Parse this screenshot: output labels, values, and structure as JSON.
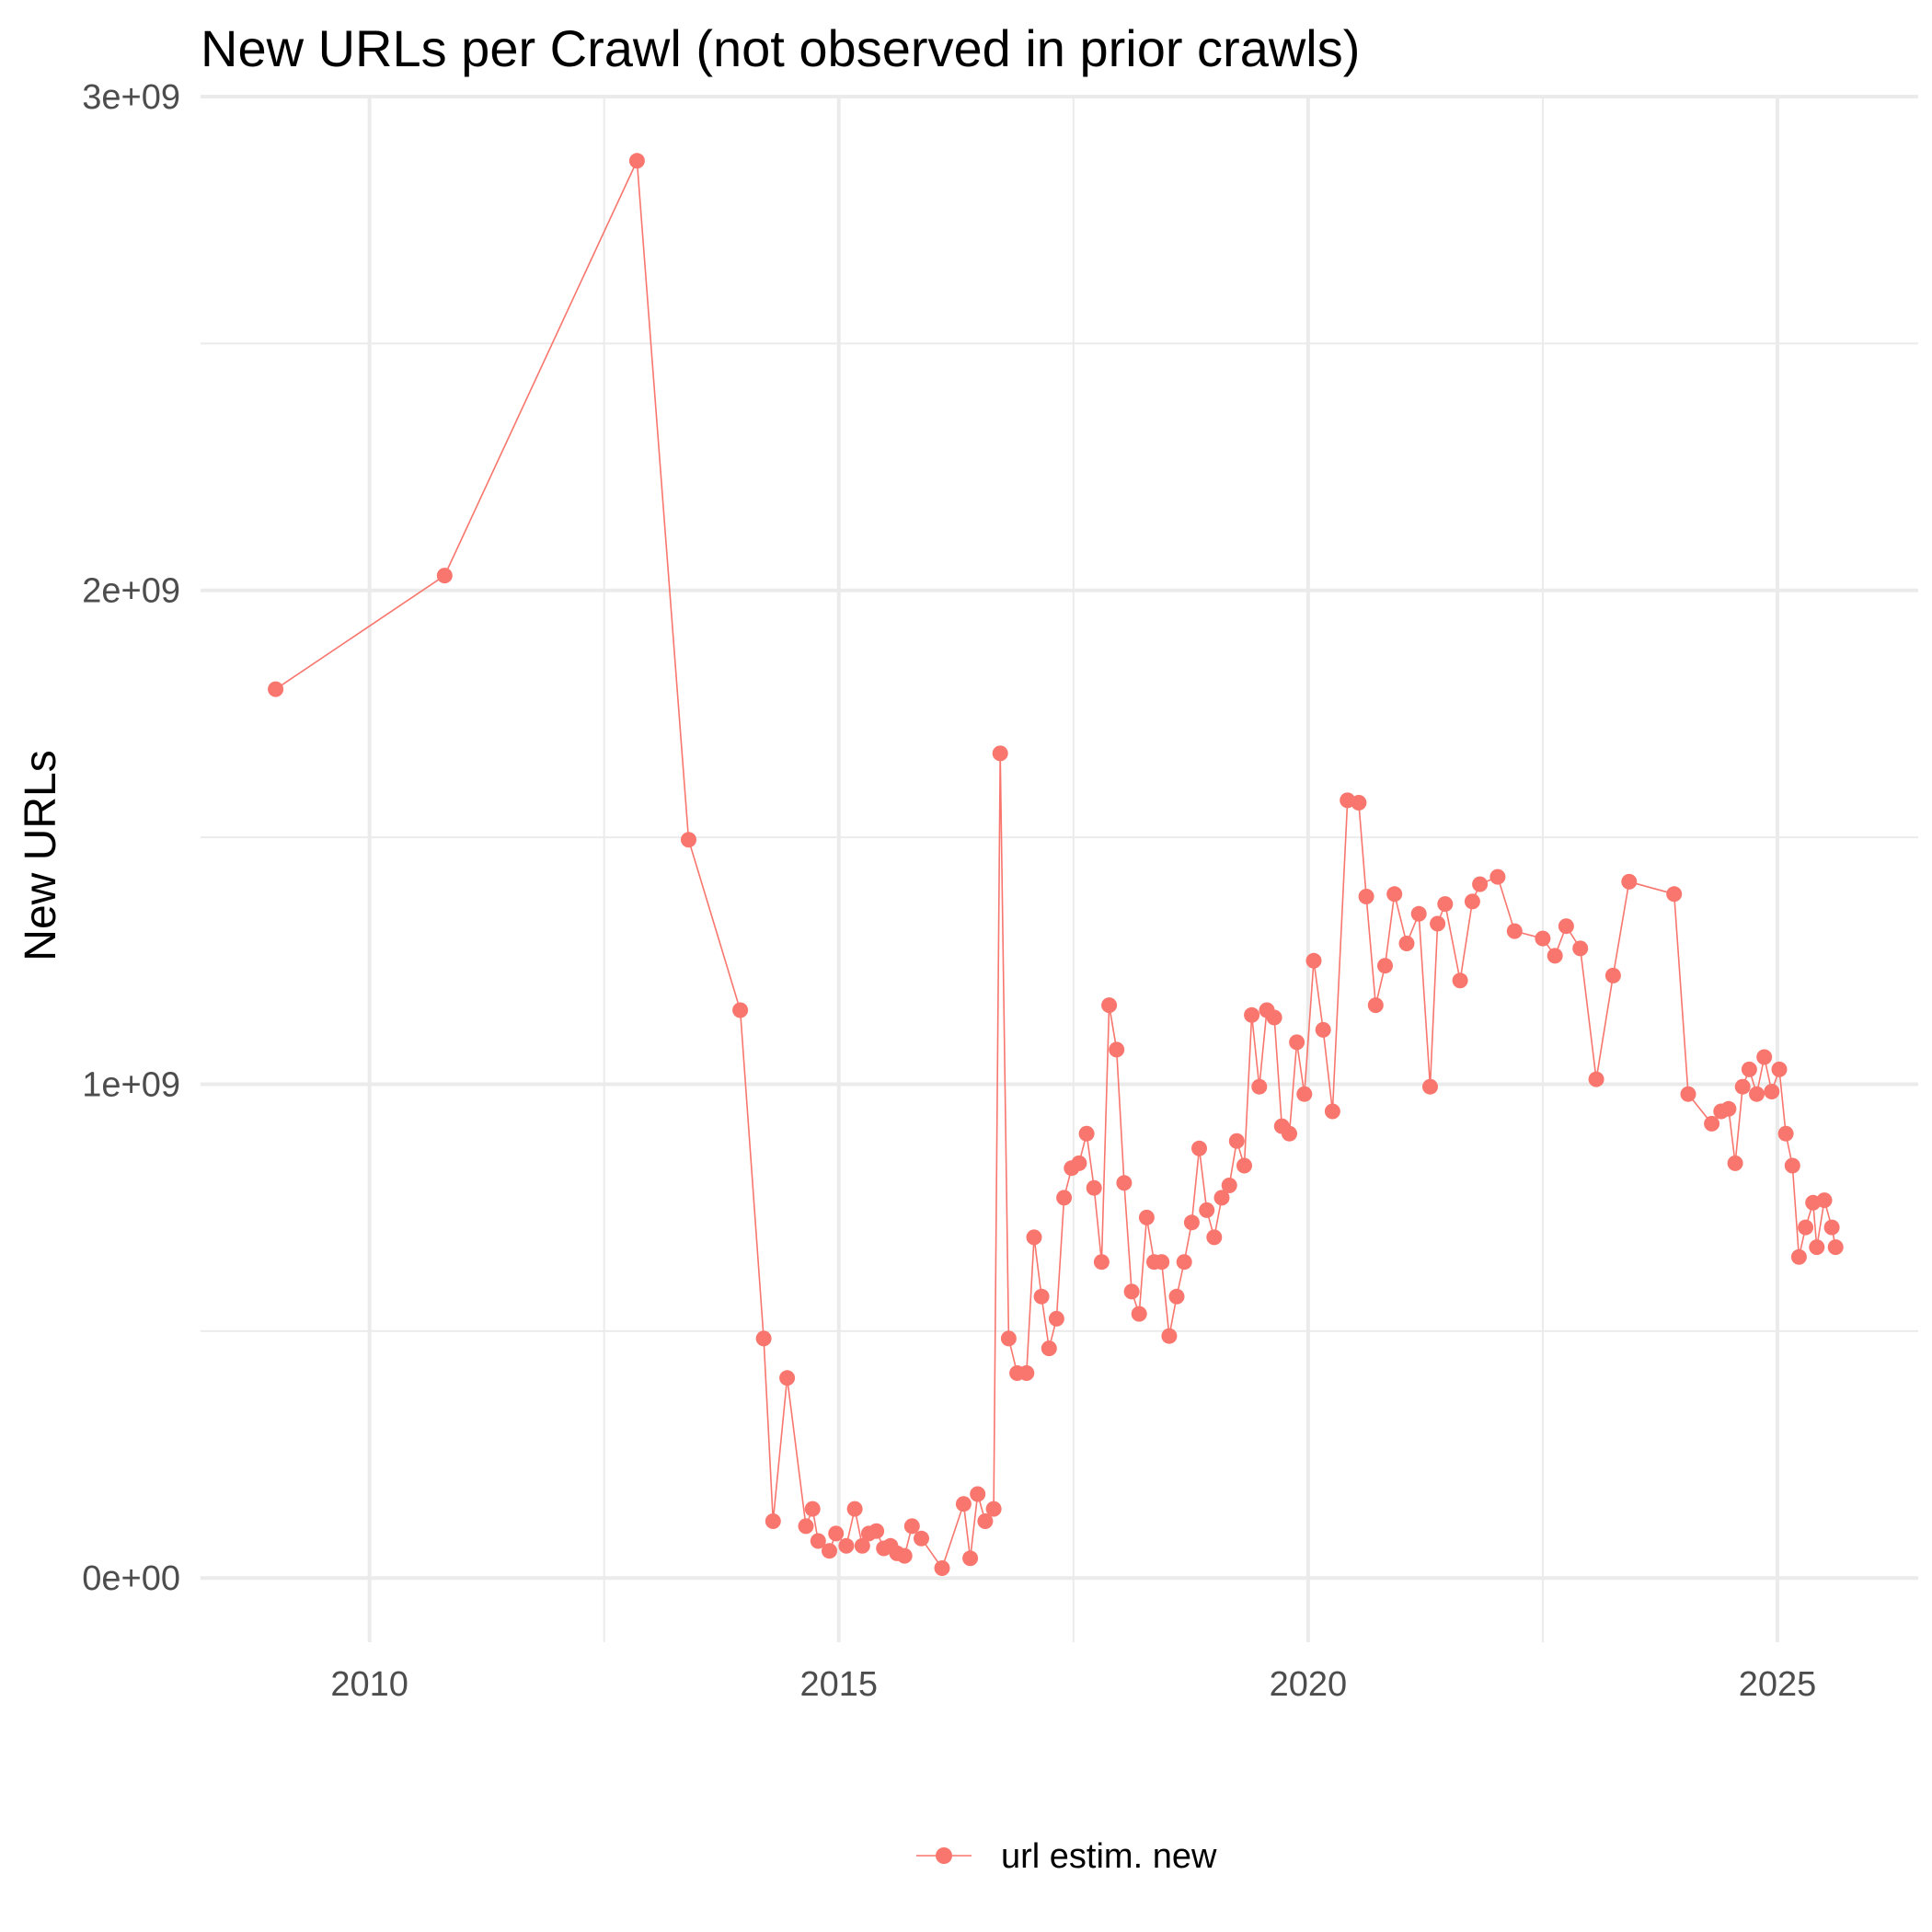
{
  "chart_data": {
    "type": "line",
    "title": "New URLs per Crawl (not observed in prior crawls)",
    "xlabel": "",
    "ylabel": "New URLs",
    "xlim": [
      2008.2,
      2026.5
    ],
    "ylim": [
      -130000000,
      3000000000
    ],
    "x_ticks": [
      2010,
      2015,
      2020,
      2025
    ],
    "x_tick_labels": [
      "2010",
      "2015",
      "2020",
      "2025"
    ],
    "y_ticks": [
      0,
      1000000000,
      2000000000,
      3000000000
    ],
    "y_tick_labels": [
      "0e+00",
      "1e+09",
      "2e+09",
      "3e+09"
    ],
    "grid": true,
    "legend_position": "bottom",
    "series": [
      {
        "name": "url estim. new",
        "color": "#f8766d",
        "x": [
          2009.0,
          2010.8,
          2012.85,
          2013.4,
          2013.95,
          2014.2,
          2014.3,
          2014.45,
          2014.65,
          2014.72,
          2014.78,
          2014.9,
          2014.97,
          2015.08,
          2015.17,
          2015.25,
          2015.32,
          2015.4,
          2015.48,
          2015.55,
          2015.62,
          2015.7,
          2015.78,
          2015.88,
          2016.1,
          2016.33,
          2016.4,
          2016.48,
          2016.56,
          2016.65,
          2016.72,
          2016.81,
          2016.9,
          2017.0,
          2017.08,
          2017.16,
          2017.24,
          2017.32,
          2017.4,
          2017.48,
          2017.56,
          2017.64,
          2017.72,
          2017.8,
          2017.88,
          2017.96,
          2018.04,
          2018.12,
          2018.2,
          2018.28,
          2018.36,
          2018.44,
          2018.52,
          2018.6,
          2018.68,
          2018.76,
          2018.84,
          2018.92,
          2019.0,
          2019.08,
          2019.16,
          2019.24,
          2019.32,
          2019.4,
          2019.48,
          2019.56,
          2019.64,
          2019.72,
          2019.8,
          2019.88,
          2019.96,
          2020.06,
          2020.16,
          2020.26,
          2020.42,
          2020.54,
          2020.62,
          2020.72,
          2020.82,
          2020.92,
          2021.05,
          2021.18,
          2021.3,
          2021.38,
          2021.46,
          2021.62,
          2021.75,
          2021.83,
          2022.02,
          2022.2,
          2022.5,
          2022.63,
          2022.75,
          2022.9,
          2023.07,
          2023.25,
          2023.42,
          2023.9,
          2024.05,
          2024.3,
          2024.4,
          2024.48,
          2024.55,
          2024.63,
          2024.7,
          2024.78,
          2024.86,
          2024.94,
          2025.02,
          2025.09,
          2025.16,
          2025.23,
          2025.3,
          2025.38,
          2025.42,
          2025.5,
          2025.58,
          2025.62
        ],
        "y": [
          1800000000,
          2030000000,
          2870000000,
          1495000000,
          1150000000,
          485000000,
          115000000,
          405000000,
          105000000,
          140000000,
          75000000,
          55000000,
          90000000,
          65000000,
          140000000,
          65000000,
          90000000,
          95000000,
          60000000,
          65000000,
          50000000,
          45000000,
          105000000,
          80000000,
          20000000,
          150000000,
          40000000,
          170000000,
          115000000,
          140000000,
          1670000000,
          485000000,
          415000000,
          415000000,
          690000000,
          570000000,
          465000000,
          525000000,
          770000000,
          830000000,
          840000000,
          900000000,
          790000000,
          640000000,
          1160000000,
          1070000000,
          800000000,
          580000000,
          535000000,
          730000000,
          640000000,
          640000000,
          490000000,
          570000000,
          640000000,
          720000000,
          870000000,
          745000000,
          690000000,
          770000000,
          795000000,
          885000000,
          835000000,
          1140000000,
          995000000,
          1150000000,
          1135000000,
          915000000,
          900000000,
          1085000000,
          980000000,
          1250000000,
          1110000000,
          945000000,
          1575000000,
          1570000000,
          1380000000,
          1160000000,
          1240000000,
          1385000000,
          1285000000,
          1345000000,
          995000000,
          1325000000,
          1365000000,
          1210000000,
          1370000000,
          1405000000,
          1420000000,
          1310000000,
          1295000000,
          1260000000,
          1320000000,
          1275000000,
          1010000000,
          1220000000,
          1410000000,
          1385000000,
          980000000,
          920000000,
          945000000,
          950000000,
          840000000,
          995000000,
          1030000000,
          980000000,
          1055000000,
          985000000,
          1030000000,
          900000000,
          835000000,
          650000000,
          710000000,
          760000000,
          670000000,
          765000000,
          710000000,
          670000000
        ]
      }
    ]
  }
}
